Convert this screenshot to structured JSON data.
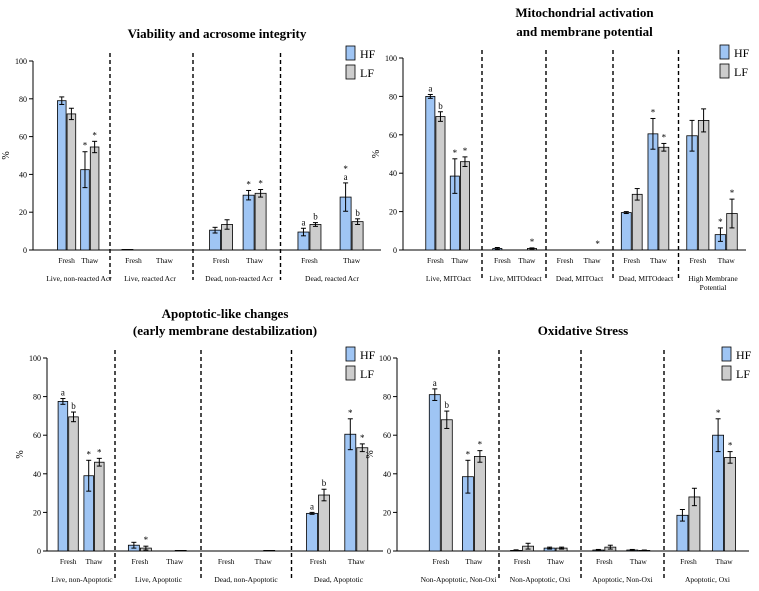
{
  "colors": {
    "HF": "#9fc5f4",
    "LF": "#cdcdcd",
    "axis": "#000000",
    "divider": "#000000"
  },
  "chart_data": [
    {
      "type": "bar",
      "title": [
        "Viability and acrosome integrity"
      ],
      "ylabel": "%",
      "ylim": [
        0,
        100
      ],
      "yticks": [
        0,
        20,
        40,
        60,
        80,
        100
      ],
      "legend": [
        {
          "key": "HF",
          "label": "HF"
        },
        {
          "key": "LF",
          "label": "LF"
        }
      ],
      "legend_position": "top-right",
      "conditions": [
        "Fresh",
        "Thaw"
      ],
      "groups": [
        {
          "label": [
            "Live, non-reacted Acr"
          ],
          "HF": [
            [
              79,
              2
            ],
            [
              42.5,
              9.5
            ]
          ],
          "LF": [
            [
              72,
              3
            ],
            [
              54.5,
              3
            ]
          ],
          "marks": {
            "HF": [
              [],
              [
                "*"
              ]
            ],
            "LF": [
              [],
              [
                "*"
              ]
            ]
          }
        },
        {
          "label": [
            "Live, reacted Acr"
          ],
          "HF": [
            [
              0.3,
              0
            ],
            [
              0,
              0
            ]
          ],
          "LF": [
            [
              0,
              0
            ],
            [
              0,
              0
            ]
          ],
          "marks": {
            "HF": [
              [],
              []
            ],
            "LF": [
              [],
              []
            ]
          }
        },
        {
          "label": [
            "Dead, non-reacted Acr"
          ],
          "HF": [
            [
              10.5,
              1.5
            ],
            [
              29,
              2.5
            ]
          ],
          "LF": [
            [
              13.5,
              2.5
            ],
            [
              30,
              2
            ]
          ],
          "marks": {
            "HF": [
              [],
              [
                "*"
              ]
            ],
            "LF": [
              [],
              [
                "*"
              ]
            ]
          }
        },
        {
          "label": [
            "Dead, reacted Acr"
          ],
          "HF": [
            [
              9.5,
              2
            ],
            [
              28,
              7.5
            ]
          ],
          "LF": [
            [
              13.5,
              1
            ],
            [
              15,
              1.5
            ]
          ],
          "marks": {
            "HF": [
              [
                "a"
              ],
              [
                "*",
                "a"
              ]
            ],
            "LF": [
              [
                "b"
              ],
              [
                "b"
              ]
            ]
          }
        }
      ]
    },
    {
      "type": "bar",
      "title": [
        "Mitochondrial activation",
        "and membrane potential"
      ],
      "ylabel": "%",
      "ylim": [
        0,
        100
      ],
      "yticks": [
        0,
        20,
        40,
        60,
        80,
        100
      ],
      "legend": [
        {
          "key": "HF",
          "label": "HF"
        },
        {
          "key": "LF",
          "label": "LF"
        }
      ],
      "legend_position": "top-right",
      "conditions": [
        "Fresh",
        "Thaw"
      ],
      "groups": [
        {
          "label": [
            "Live, MITOact"
          ],
          "HF": [
            [
              80,
              1
            ],
            [
              38.5,
              9
            ]
          ],
          "LF": [
            [
              69.5,
              2.5
            ],
            [
              46,
              2.5
            ]
          ],
          "marks": {
            "HF": [
              [
                "a"
              ],
              [
                "*"
              ]
            ],
            "LF": [
              [
                "b"
              ],
              [
                "*"
              ]
            ]
          }
        },
        {
          "label": [
            "Live, MITOdeact"
          ],
          "HF": [
            [
              0.8,
              0.5
            ],
            [
              0,
              0
            ]
          ],
          "LF": [
            [
              0,
              0
            ],
            [
              0.8,
              0.3
            ]
          ],
          "marks": {
            "HF": [
              [],
              []
            ],
            "LF": [
              [],
              [
                "*"
              ]
            ]
          }
        },
        {
          "label": [
            "Dead, MITOact"
          ],
          "HF": [
            [
              0,
              0
            ],
            [
              0,
              0
            ]
          ],
          "LF": [
            [
              0,
              0
            ],
            [
              0,
              0
            ]
          ],
          "marks": {
            "HF": [
              [],
              []
            ],
            "LF": [
              [],
              [
                "*"
              ]
            ]
          }
        },
        {
          "label": [
            "Dead, MITOdeact"
          ],
          "HF": [
            [
              19.5,
              0.5
            ],
            [
              60.5,
              8
            ]
          ],
          "LF": [
            [
              29,
              3
            ],
            [
              53.5,
              2
            ]
          ],
          "marks": {
            "HF": [
              [],
              [
                "*"
              ]
            ],
            "LF": [
              [],
              [
                "*"
              ]
            ]
          }
        },
        {
          "label": [
            "High Membrane",
            "Potential"
          ],
          "HF": [
            [
              59.5,
              8
            ],
            [
              8,
              3.5
            ]
          ],
          "LF": [
            [
              67.5,
              6
            ],
            [
              19,
              7.5
            ]
          ],
          "marks": {
            "HF": [
              [],
              [
                "*"
              ]
            ],
            "LF": [
              [],
              [
                "*"
              ]
            ]
          }
        }
      ]
    },
    {
      "type": "bar",
      "title": [
        "Apoptotic-like changes",
        "(early membrane destabilization)"
      ],
      "ylabel": "%",
      "ylim": [
        0,
        100
      ],
      "yticks": [
        0,
        20,
        40,
        60,
        80,
        100
      ],
      "legend": [
        {
          "key": "HF",
          "label": "HF"
        },
        {
          "key": "LF",
          "label": "LF"
        }
      ],
      "legend_position": "top-right",
      "conditions": [
        "Fresh",
        "Thaw"
      ],
      "groups": [
        {
          "label": [
            "Live, non-Apoptotic"
          ],
          "HF": [
            [
              77.5,
              1.5
            ],
            [
              39,
              8
            ]
          ],
          "LF": [
            [
              69.5,
              2.5
            ],
            [
              46,
              2
            ]
          ],
          "marks": {
            "HF": [
              [
                "a"
              ],
              [
                "*"
              ]
            ],
            "LF": [
              [
                "b"
              ],
              [
                "*"
              ]
            ]
          }
        },
        {
          "label": [
            "Live, Apoptotic"
          ],
          "HF": [
            [
              3,
              1.5
            ],
            [
              0,
              0
            ]
          ],
          "LF": [
            [
              1.5,
              1
            ],
            [
              0.3,
              0
            ]
          ],
          "marks": {
            "HF": [
              [],
              []
            ],
            "LF": [
              [
                "*"
              ],
              []
            ]
          }
        },
        {
          "label": [
            "Dead, non-Apoptotic"
          ],
          "HF": [
            [
              0,
              0
            ],
            [
              0,
              0
            ]
          ],
          "LF": [
            [
              0,
              0
            ],
            [
              0.3,
              0
            ]
          ],
          "marks": {
            "HF": [
              [],
              []
            ],
            "LF": [
              [],
              []
            ]
          }
        },
        {
          "label": [
            "Dead, Apoptotic"
          ],
          "HF": [
            [
              19.5,
              0.5
            ],
            [
              60.5,
              8
            ]
          ],
          "LF": [
            [
              29,
              3
            ],
            [
              53.5,
              2
            ]
          ],
          "marks": {
            "HF": [
              [
                "a"
              ],
              [
                "*"
              ]
            ],
            "LF": [
              [
                "b"
              ],
              [
                "*"
              ]
            ]
          }
        }
      ]
    },
    {
      "type": "bar",
      "title": [
        "Oxidative Stress"
      ],
      "ylabel": "%",
      "ylim": [
        0,
        100
      ],
      "yticks": [
        0,
        20,
        40,
        60,
        80,
        100
      ],
      "legend": [
        {
          "key": "HF",
          "label": "HF"
        },
        {
          "key": "LF",
          "label": "LF"
        }
      ],
      "legend_position": "top-right",
      "conditions": [
        "Fresh",
        "Thaw"
      ],
      "groups": [
        {
          "label": [
            "Non-Apoptotic, Non-Oxi"
          ],
          "HF": [
            [
              81,
              3
            ],
            [
              38.5,
              8.5
            ]
          ],
          "LF": [
            [
              68,
              4.5
            ],
            [
              49,
              3
            ]
          ],
          "marks": {
            "HF": [
              [
                "a"
              ],
              [
                "*"
              ]
            ],
            "LF": [
              [
                "b"
              ],
              [
                "*"
              ]
            ]
          }
        },
        {
          "label": [
            "Non-Apoptotic, Oxi"
          ],
          "HF": [
            [
              0.3,
              0.3
            ],
            [
              1.5,
              0.5
            ]
          ],
          "LF": [
            [
              2.5,
              1.5
            ],
            [
              1.5,
              0.5
            ]
          ],
          "marks": {
            "HF": [
              [],
              []
            ],
            "LF": [
              [],
              []
            ]
          }
        },
        {
          "label": [
            "Apoptotic, Non-Oxi"
          ],
          "HF": [
            [
              0.5,
              0.3
            ],
            [
              0.5,
              0.3
            ]
          ],
          "LF": [
            [
              2,
              1
            ],
            [
              0.3,
              0.2
            ]
          ],
          "marks": {
            "HF": [
              [],
              []
            ],
            "LF": [
              [],
              []
            ]
          }
        },
        {
          "label": [
            "Apoptotic, Oxi"
          ],
          "HF": [
            [
              18.5,
              3
            ],
            [
              60,
              8.5
            ]
          ],
          "LF": [
            [
              28,
              4.5
            ],
            [
              48.5,
              3
            ]
          ],
          "marks": {
            "HF": [
              [],
              [
                "*"
              ]
            ],
            "LF": [
              [],
              [
                "*"
              ]
            ]
          }
        }
      ]
    }
  ]
}
